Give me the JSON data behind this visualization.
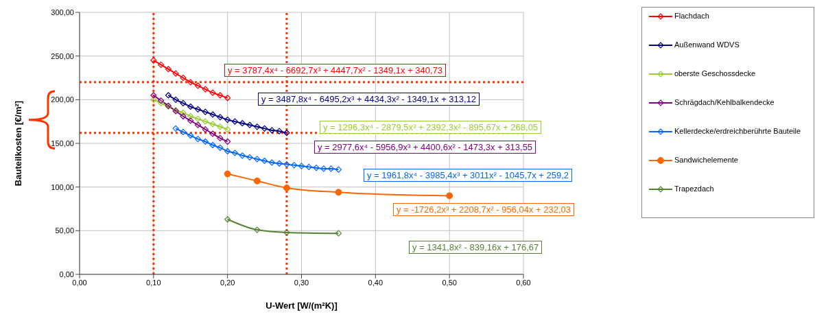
{
  "chart_data": {
    "type": "line",
    "xlabel": "U-Wert [W/(m²K)]",
    "ylabel": "Bauteilkosten [€/m²]",
    "xlim": [
      0,
      0.6
    ],
    "xticks": [
      {
        "value": 0,
        "label": "0,00"
      },
      {
        "value": 0.1,
        "label": "0,10"
      },
      {
        "value": 0.2,
        "label": "0,20"
      },
      {
        "value": 0.3,
        "label": "0,30"
      },
      {
        "value": 0.4,
        "label": "0,40"
      },
      {
        "value": 0.5,
        "label": "0,50"
      },
      {
        "value": 0.6,
        "label": "0,60"
      }
    ],
    "ylim": [
      0,
      300
    ],
    "yticks": [
      {
        "value": 0,
        "label": "0,00"
      },
      {
        "value": 50,
        "label": "50,00"
      },
      {
        "value": 100,
        "label": "100,00"
      },
      {
        "value": 150,
        "label": "150,00"
      },
      {
        "value": 200,
        "label": "200,00"
      },
      {
        "value": 250,
        "label": "250,00"
      },
      {
        "value": 300,
        "label": "300,00"
      }
    ],
    "grid": true,
    "legend": "right",
    "series": [
      {
        "name": "Flachdach",
        "color": "#ff0000",
        "marker": "diamond",
        "x": [
          0.1,
          0.11,
          0.12,
          0.13,
          0.14,
          0.15,
          0.16,
          0.17,
          0.18,
          0.19,
          0.2
        ],
        "values": [
          245,
          240,
          235,
          230,
          225,
          220,
          216,
          212,
          208,
          205,
          202
        ]
      },
      {
        "name": "Außenwand WDVS",
        "color": "#000080",
        "marker": "diamond",
        "x": [
          0.12,
          0.13,
          0.14,
          0.15,
          0.16,
          0.17,
          0.18,
          0.19,
          0.2,
          0.21,
          0.22,
          0.23,
          0.24,
          0.25,
          0.26,
          0.27,
          0.28
        ],
        "values": [
          205,
          200,
          196,
          192,
          189,
          186,
          183,
          180,
          177,
          175,
          173,
          171,
          169,
          167,
          165,
          164,
          162
        ]
      },
      {
        "name": "oberste Geschossdecke",
        "color": "#99cc33",
        "marker": "diamond",
        "x": [
          0.1,
          0.11,
          0.12,
          0.13,
          0.14,
          0.15,
          0.16,
          0.17,
          0.18,
          0.19,
          0.2
        ],
        "values": [
          200,
          196,
          192,
          188,
          185,
          181,
          178,
          175,
          172,
          169,
          166
        ]
      },
      {
        "name": "Schrägdach/Kehlbalkendecke",
        "color": "#800080",
        "marker": "diamond",
        "x": [
          0.1,
          0.11,
          0.12,
          0.13,
          0.14,
          0.15,
          0.16,
          0.17,
          0.18,
          0.19,
          0.2
        ],
        "values": [
          205,
          199,
          193,
          187,
          181,
          176,
          171,
          166,
          161,
          156,
          152
        ]
      },
      {
        "name": "Kellerdecke/erdreichberührte Bauteile",
        "color": "#0066ff",
        "marker": "diamond",
        "x": [
          0.13,
          0.14,
          0.15,
          0.16,
          0.17,
          0.18,
          0.19,
          0.2,
          0.21,
          0.22,
          0.23,
          0.24,
          0.25,
          0.26,
          0.27,
          0.28,
          0.29,
          0.3,
          0.31,
          0.32,
          0.33,
          0.34,
          0.35
        ],
        "values": [
          167,
          163,
          159,
          155,
          152,
          148,
          145,
          141,
          139,
          136,
          134,
          132,
          130,
          128,
          127,
          126,
          125,
          124,
          123,
          122,
          121,
          121,
          120
        ]
      },
      {
        "name": "Sandwichelemente",
        "color": "#ff6600",
        "marker": "circle",
        "x": [
          0.2,
          0.24,
          0.28,
          0.35,
          0.5
        ],
        "values": [
          115,
          107,
          99,
          94,
          90
        ]
      },
      {
        "name": "Trapezdach",
        "color": "#548235",
        "marker": "diamond",
        "x": [
          0.2,
          0.24,
          0.28,
          0.35
        ],
        "values": [
          63,
          51,
          48,
          47
        ]
      }
    ],
    "ref_lines": [
      {
        "axis": "x",
        "value": 0.1,
        "color": "#ff3300",
        "line_style": "dotted"
      },
      {
        "axis": "x",
        "value": 0.28,
        "color": "#ff3300",
        "line_style": "dotted"
      },
      {
        "axis": "y",
        "value": 220,
        "color": "#ff3300",
        "line_style": "dotted"
      },
      {
        "axis": "y",
        "value": 162,
        "color": "#ff3300",
        "line_style": "dotted"
      }
    ],
    "annotations": [
      "y = 3787,4x⁴ - 6692,7x³ + 4447,7x² - 1349,1x + 340,73",
      "y = 3487,8x⁴ - 6495,2x³ + 4434,3x² - 1349,1x + 313,12",
      "y = 1296,3x⁴ - 2879,5x³ + 2392,3x² - 895,67x + 268,05",
      "y = 2977,6x⁴ - 5956,9x³ + 4400,6x² - 1473,3x + 313,55",
      "y = 1961,8x⁴ - 3985,4x³ + 3011x² - 1045,7x + 259,2",
      "y = -1726,2x³ + 2208,7x² - 956,04x + 232,03",
      "y = 1341,8x² - 839,16x + 176,67"
    ]
  }
}
